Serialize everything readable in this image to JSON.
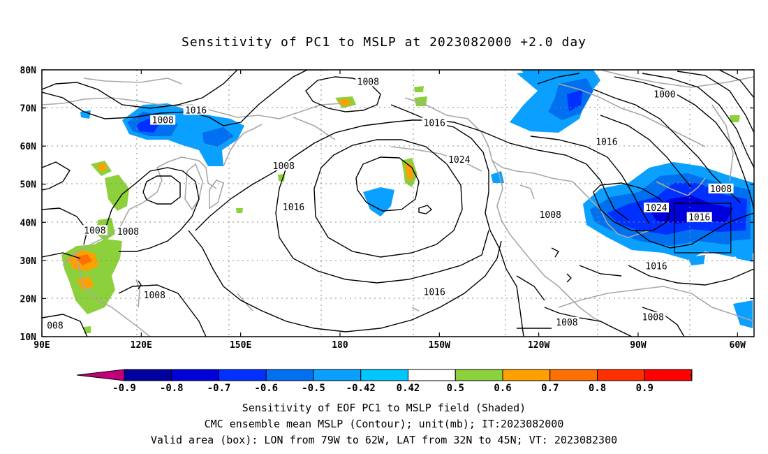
{
  "title": "Sensitivity of PC1 to MSLP at 2023082000 +2.0 day",
  "map": {
    "lon_range": [
      90,
      305
    ],
    "lat_range": [
      10,
      80
    ],
    "lon_ticks": [
      {
        "lon": 90,
        "label": "90E"
      },
      {
        "lon": 120,
        "label": "120E"
      },
      {
        "lon": 150,
        "label": "150E"
      },
      {
        "lon": 180,
        "label": "180"
      },
      {
        "lon": 210,
        "label": "150W"
      },
      {
        "lon": 240,
        "label": "120W"
      },
      {
        "lon": 270,
        "label": "90W"
      },
      {
        "lon": 300,
        "label": "60W"
      }
    ],
    "lat_ticks": [
      {
        "lat": 80,
        "label": "80N"
      },
      {
        "lat": 70,
        "label": "70N"
      },
      {
        "lat": 60,
        "label": "60N"
      },
      {
        "lat": 50,
        "label": "50N"
      },
      {
        "lat": 40,
        "label": "40N"
      },
      {
        "lat": 30,
        "label": "30N"
      },
      {
        "lat": 20,
        "label": "20N"
      },
      {
        "lat": 10,
        "label": "10N"
      }
    ],
    "gridlines": "dotted",
    "colors": {
      "contour": "#000000",
      "coast": "#a8a8a8",
      "grid": "#888888",
      "frame": "#000000"
    },
    "valid_box": {
      "lon_min": 281,
      "lon_max": 298,
      "lat_min": 32,
      "lat_max": 45
    },
    "contour_labels": [
      {
        "text": "1008",
        "lon": 188.5,
        "lat": 76.8
      },
      {
        "text": "1000",
        "lon": 278,
        "lat": 73.5
      },
      {
        "text": "1016",
        "lon": 136.5,
        "lat": 69.3
      },
      {
        "text": "1008",
        "lon": 126.5,
        "lat": 66.7
      },
      {
        "text": "1016",
        "lon": 208.5,
        "lat": 66.0
      },
      {
        "text": "1016",
        "lon": 260.5,
        "lat": 61.0
      },
      {
        "text": "1024",
        "lon": 216,
        "lat": 56.4
      },
      {
        "text": "1008",
        "lon": 163,
        "lat": 54.7
      },
      {
        "text": "1008",
        "lon": 295,
        "lat": 48.7
      },
      {
        "text": "1016",
        "lon": 166,
        "lat": 43.9
      },
      {
        "text": "1024",
        "lon": 275.5,
        "lat": 43.7
      },
      {
        "text": "1016",
        "lon": 288.5,
        "lat": 41.2
      },
      {
        "text": "1008",
        "lon": 106,
        "lat": 37.8
      },
      {
        "text": "1008",
        "lon": 116,
        "lat": 37.5
      },
      {
        "text": "1008",
        "lon": 243.5,
        "lat": 41.9
      },
      {
        "text": "1016",
        "lon": 275.5,
        "lat": 28.4
      },
      {
        "text": "1008",
        "lon": 124,
        "lat": 20.8
      },
      {
        "text": "1016",
        "lon": 208.5,
        "lat": 21.6
      },
      {
        "text": "1008",
        "lon": 248.5,
        "lat": 13.7
      },
      {
        "text": "1008",
        "lon": 274.5,
        "lat": 15.0
      },
      {
        "text": "008",
        "lon": 94,
        "lat": 12.8
      }
    ]
  },
  "colorbar": {
    "labels": [
      "-0.9",
      "-0.8",
      "-0.7",
      "-0.6",
      "-0.5",
      "-0.42",
      "0.42",
      "0.5",
      "0.6",
      "0.7",
      "0.8",
      "0.9"
    ],
    "colors": [
      "#0000a0",
      "#0000d8",
      "#0030ff",
      "#0070f0",
      "#0aa0ff",
      "#00c8ff",
      "#ffffff",
      "#8cd03c",
      "#ffa000",
      "#ff7000",
      "#ff3000",
      "#ff0000"
    ],
    "low_end_color": "#c0007a",
    "high_end_color": "#f8a0c8"
  },
  "captions": [
    "Sensitivity of EOF PC1 to MSLP field (Shaded)",
    "CMC ensemble mean MSLP (Contour); unit(mb); IT:2023082000",
    "Valid area (box): LON from 79W to 62W, LAT from 32N to 45N; VT: 2023082300"
  ]
}
